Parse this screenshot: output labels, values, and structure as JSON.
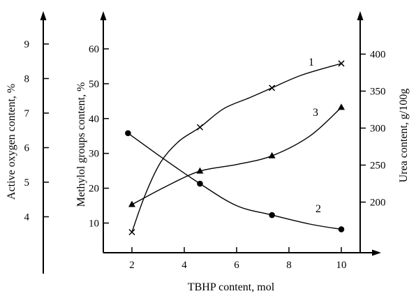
{
  "chart_data": {
    "type": "line",
    "xlabel": "TBHP content, mol",
    "x_ticks": [
      2,
      4,
      6,
      8,
      10
    ],
    "xlim": [
      1.5,
      10.4
    ],
    "axes": {
      "active_oxygen": {
        "label": "Active oxygen content, %",
        "ticks": [
          4,
          5,
          6,
          7,
          8,
          9
        ]
      },
      "methylol": {
        "label": "Methylol groups content, %",
        "ticks": [
          10,
          20,
          30,
          40,
          50,
          60
        ]
      },
      "urea": {
        "label": "Urea content, g/100g",
        "ticks": [
          200,
          250,
          300,
          350,
          400
        ]
      }
    },
    "series": [
      {
        "name": "1",
        "marker": "x",
        "axis": "methylol",
        "x": [
          2,
          4.6,
          7.35,
          10
        ],
        "y": [
          7.4,
          37.5,
          48.8,
          55.8
        ],
        "curve": [
          [
            2,
            7.4
          ],
          [
            2.5,
            18
          ],
          [
            3.1,
            27.5
          ],
          [
            3.8,
            33.5
          ],
          [
            4.6,
            37.5
          ],
          [
            5.5,
            42.8
          ],
          [
            6.5,
            46
          ],
          [
            7.35,
            48.8
          ],
          [
            8.5,
            52.5
          ],
          [
            10,
            55.8
          ]
        ]
      },
      {
        "name": "2",
        "marker": "circle",
        "axis": "methylol",
        "x": [
          1.85,
          4.6,
          7.35,
          10
        ],
        "y": [
          35.8,
          21.3,
          12.3,
          8.2
        ],
        "curve": [
          [
            1.85,
            35.8
          ],
          [
            3.2,
            28.5
          ],
          [
            4.6,
            21.3
          ],
          [
            6,
            15
          ],
          [
            7.35,
            12.3
          ],
          [
            8.8,
            9.7
          ],
          [
            10,
            8.2
          ]
        ]
      },
      {
        "name": "3",
        "marker": "triangle",
        "axis": "methylol",
        "x": [
          2,
          4.6,
          7.35,
          10
        ],
        "y": [
          15.3,
          24.9,
          29.3,
          43.2
        ],
        "curve": [
          [
            2,
            15.3
          ],
          [
            3.3,
            20.5
          ],
          [
            4.6,
            24.9
          ],
          [
            6,
            26.8
          ],
          [
            7.35,
            29.3
          ],
          [
            8.8,
            35
          ],
          [
            10,
            43.2
          ]
        ]
      }
    ]
  }
}
